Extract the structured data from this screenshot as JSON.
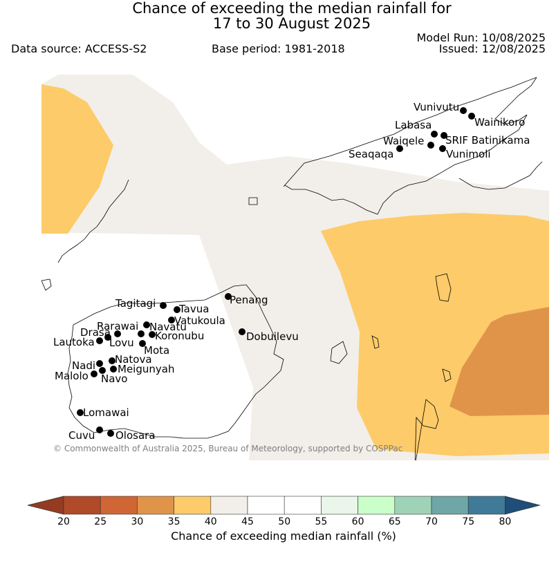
{
  "title_line1": "Chance of exceeding the median rainfall for",
  "title_line2": "17 to 30 August 2025",
  "data_source": "Data source: ACCESS-S2",
  "base_period": "Base period: 1981-2018",
  "model_run": "Model Run: 10/08/2025",
  "issued": "Issued: 12/08/2025",
  "copyright": "© Commonwealth of Australia 2025, Bureau of Meteorology, supported by COSPPac",
  "colorbar": {
    "label": "Chance of exceeding median rainfall (%)",
    "ticks": [
      "20",
      "25",
      "30",
      "35",
      "40",
      "45",
      "50",
      "55",
      "60",
      "65",
      "70",
      "75",
      "80"
    ],
    "colors": [
      "#b04a29",
      "#cf6634",
      "#e0944a",
      "#fdcb69",
      "#f2eee9",
      "#ffffff",
      "#ffffff",
      "#eaf6ea",
      "#caffc9",
      "#9ed3b8",
      "#6fa6a6",
      "#3f7a99"
    ],
    "under_color": "#953b22",
    "over_color": "#1f4e79"
  },
  "map": {
    "category_colors": {
      "35-40": "#fdcb69",
      "40-45": "#f2eee9",
      "30-35": "#e0944a",
      "45-55": "#ffffff"
    },
    "stations": [
      {
        "name": "Vunivutu"
      },
      {
        "name": "Wainikoro"
      },
      {
        "name": "Labasa"
      },
      {
        "name": "SRIF Batinikama"
      },
      {
        "name": "Waiqele"
      },
      {
        "name": "Vunimoli"
      },
      {
        "name": "Seaqaqa"
      },
      {
        "name": "Penang"
      },
      {
        "name": "Tagitagi"
      },
      {
        "name": "Tavua"
      },
      {
        "name": "Vatukoula"
      },
      {
        "name": "Rarawai"
      },
      {
        "name": "Navatu"
      },
      {
        "name": "Drasa"
      },
      {
        "name": "Koronubu"
      },
      {
        "name": "Lautoka"
      },
      {
        "name": "Lovu"
      },
      {
        "name": "Mota"
      },
      {
        "name": "Dobuilevu"
      },
      {
        "name": "Natova"
      },
      {
        "name": "Nadi"
      },
      {
        "name": "Meigunyah"
      },
      {
        "name": "Malolo"
      },
      {
        "name": "Navo"
      },
      {
        "name": "Lomawai"
      },
      {
        "name": "Cuvu"
      },
      {
        "name": "Olosara"
      }
    ]
  }
}
